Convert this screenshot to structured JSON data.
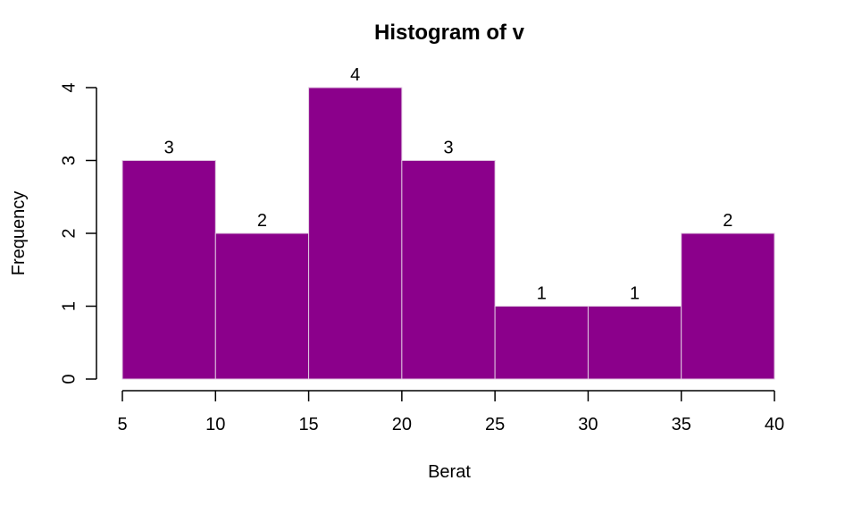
{
  "chart_data": {
    "type": "bar",
    "title": "Histogram of v",
    "xlabel": "Berat",
    "ylabel": "Frequency",
    "bins": [
      [
        5,
        10
      ],
      [
        10,
        15
      ],
      [
        15,
        20
      ],
      [
        20,
        25
      ],
      [
        25,
        30
      ],
      [
        30,
        35
      ],
      [
        35,
        40
      ]
    ],
    "values": [
      3,
      2,
      4,
      3,
      1,
      1,
      2
    ],
    "data_labels": [
      "3",
      "2",
      "4",
      "3",
      "1",
      "1",
      "2"
    ],
    "x_ticks": [
      "5",
      "10",
      "15",
      "20",
      "25",
      "30",
      "35",
      "40"
    ],
    "y_ticks": [
      "0",
      "1",
      "2",
      "3",
      "4"
    ],
    "xlim": [
      5,
      40
    ],
    "ylim": [
      0,
      4
    ],
    "grid": false,
    "bar_color": "#8b008b"
  }
}
